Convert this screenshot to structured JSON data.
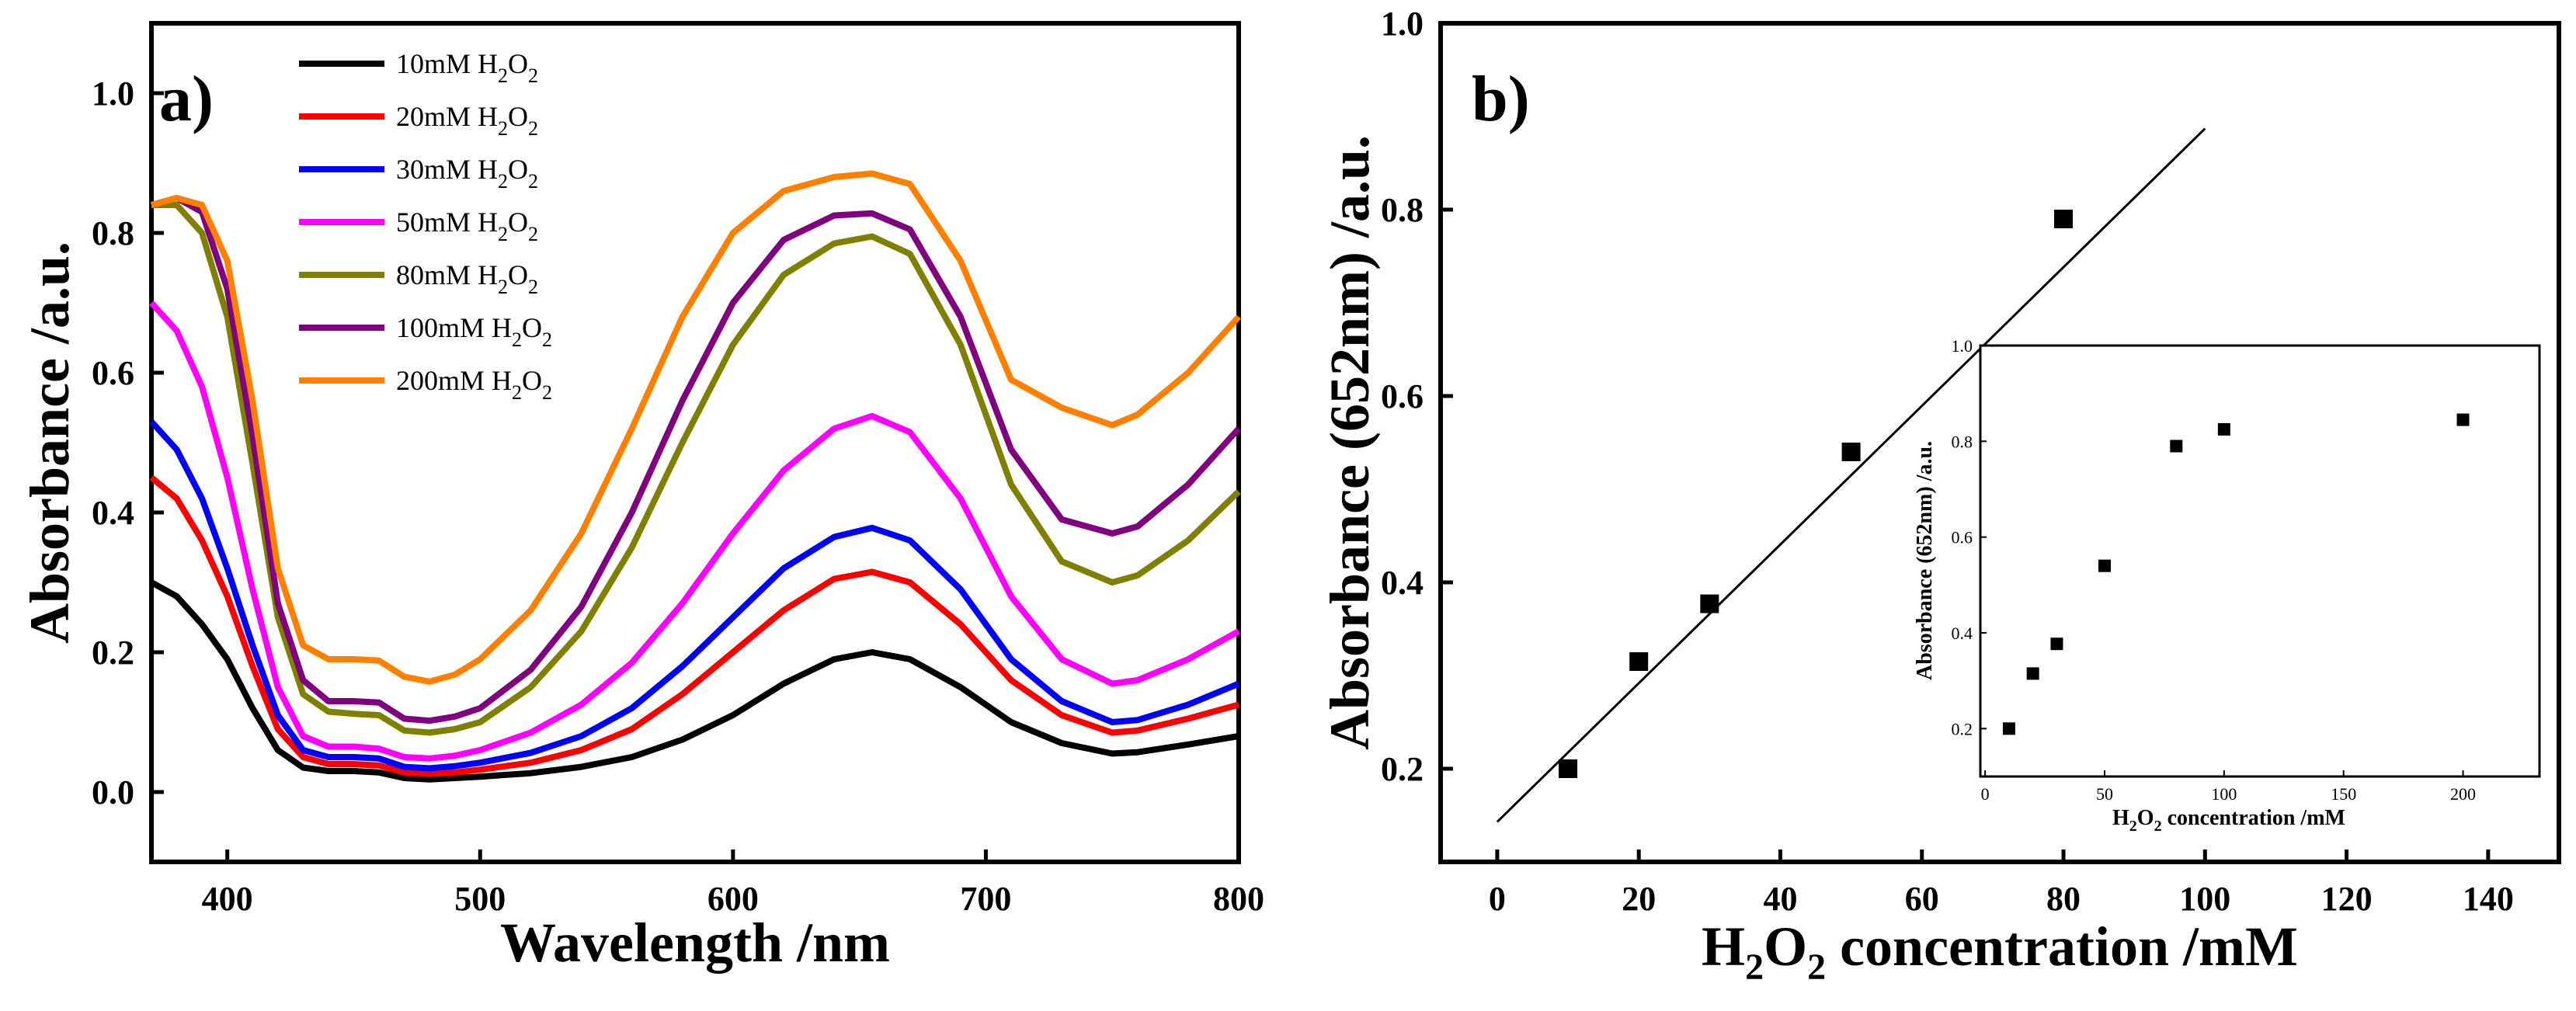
{
  "chart_data": [
    {
      "type": "line",
      "panel_label": "a)",
      "xlabel": "Wavelength /nm",
      "ylabel": "Absorbance /a.u.",
      "xlim": [
        370,
        800
      ],
      "ylim": [
        -0.1,
        1.1
      ],
      "xticks": [
        400,
        500,
        600,
        700,
        800
      ],
      "yticks": [
        0.0,
        0.2,
        0.4,
        0.6,
        0.8,
        1.0
      ],
      "xtick_labels": [
        "400",
        "500",
        "600",
        "700",
        "800"
      ],
      "ytick_labels": [
        "0.0",
        "0.2",
        "0.4",
        "0.6",
        "0.8",
        "1.0"
      ],
      "legend_position": "top-left",
      "series": [
        {
          "name": "10mM H2O2",
          "label_main": "10mM H",
          "color": "#000000",
          "x": [
            370,
            380,
            390,
            400,
            410,
            420,
            430,
            440,
            450,
            460,
            470,
            480,
            490,
            500,
            520,
            540,
            560,
            580,
            600,
            620,
            640,
            655,
            670,
            690,
            710,
            730,
            750,
            760,
            780,
            800
          ],
          "y": [
            0.3,
            0.28,
            0.24,
            0.19,
            0.12,
            0.06,
            0.035,
            0.03,
            0.03,
            0.028,
            0.02,
            0.018,
            0.02,
            0.022,
            0.027,
            0.036,
            0.05,
            0.075,
            0.11,
            0.155,
            0.19,
            0.2,
            0.19,
            0.15,
            0.1,
            0.07,
            0.055,
            0.057,
            0.068,
            0.08
          ]
        },
        {
          "name": "20mM H2O2",
          "label_main": "20mM H",
          "color": "#ff0000",
          "x": [
            370,
            380,
            390,
            400,
            410,
            420,
            430,
            440,
            450,
            460,
            470,
            480,
            490,
            500,
            520,
            540,
            560,
            580,
            600,
            620,
            640,
            655,
            670,
            690,
            710,
            730,
            750,
            760,
            780,
            800
          ],
          "y": [
            0.45,
            0.42,
            0.36,
            0.28,
            0.18,
            0.09,
            0.05,
            0.04,
            0.04,
            0.038,
            0.028,
            0.026,
            0.028,
            0.032,
            0.042,
            0.06,
            0.09,
            0.14,
            0.2,
            0.26,
            0.305,
            0.315,
            0.3,
            0.24,
            0.16,
            0.11,
            0.085,
            0.088,
            0.105,
            0.125
          ]
        },
        {
          "name": "30mM H2O2",
          "label_main": "30mM H",
          "color": "#0000ff",
          "x": [
            370,
            380,
            390,
            400,
            410,
            420,
            430,
            440,
            450,
            460,
            470,
            480,
            490,
            500,
            520,
            540,
            560,
            580,
            600,
            620,
            640,
            655,
            670,
            690,
            710,
            730,
            750,
            760,
            780,
            800
          ],
          "y": [
            0.53,
            0.49,
            0.42,
            0.32,
            0.21,
            0.11,
            0.06,
            0.05,
            0.05,
            0.048,
            0.036,
            0.034,
            0.037,
            0.042,
            0.056,
            0.08,
            0.12,
            0.18,
            0.25,
            0.32,
            0.365,
            0.378,
            0.36,
            0.29,
            0.19,
            0.13,
            0.1,
            0.103,
            0.125,
            0.155
          ]
        },
        {
          "name": "50mM H2O2",
          "label_main": "50mM H",
          "color": "#ff00ff",
          "x": [
            370,
            380,
            390,
            400,
            410,
            420,
            430,
            440,
            450,
            460,
            470,
            480,
            490,
            500,
            520,
            540,
            560,
            580,
            600,
            620,
            640,
            655,
            670,
            690,
            710,
            730,
            750,
            760,
            780,
            800
          ],
          "y": [
            0.7,
            0.66,
            0.58,
            0.45,
            0.29,
            0.15,
            0.08,
            0.065,
            0.065,
            0.062,
            0.05,
            0.048,
            0.052,
            0.06,
            0.085,
            0.125,
            0.185,
            0.27,
            0.37,
            0.46,
            0.52,
            0.538,
            0.515,
            0.42,
            0.28,
            0.19,
            0.155,
            0.16,
            0.19,
            0.23
          ]
        },
        {
          "name": "80mM H2O2",
          "label_main": "80mM H",
          "color": "#808000",
          "x": [
            370,
            380,
            390,
            400,
            410,
            420,
            430,
            440,
            450,
            460,
            470,
            480,
            490,
            500,
            520,
            540,
            560,
            580,
            600,
            620,
            640,
            655,
            670,
            690,
            710,
            730,
            750,
            760,
            780,
            800
          ],
          "y": [
            0.84,
            0.84,
            0.8,
            0.68,
            0.47,
            0.25,
            0.14,
            0.115,
            0.112,
            0.11,
            0.088,
            0.085,
            0.09,
            0.1,
            0.15,
            0.23,
            0.35,
            0.5,
            0.64,
            0.74,
            0.785,
            0.795,
            0.77,
            0.64,
            0.44,
            0.33,
            0.3,
            0.31,
            0.36,
            0.43
          ]
        },
        {
          "name": "100mM H2O2",
          "label_main": "100mM H",
          "color": "#800080",
          "x": [
            370,
            380,
            390,
            400,
            410,
            420,
            430,
            440,
            450,
            460,
            470,
            480,
            490,
            500,
            520,
            540,
            560,
            580,
            600,
            620,
            640,
            655,
            670,
            690,
            710,
            730,
            750,
            760,
            780,
            800
          ],
          "y": [
            0.84,
            0.85,
            0.83,
            0.72,
            0.51,
            0.27,
            0.16,
            0.13,
            0.13,
            0.128,
            0.105,
            0.102,
            0.108,
            0.12,
            0.175,
            0.265,
            0.4,
            0.56,
            0.7,
            0.79,
            0.825,
            0.828,
            0.805,
            0.68,
            0.49,
            0.39,
            0.37,
            0.38,
            0.44,
            0.52
          ]
        },
        {
          "name": "200mM H2O2",
          "label_main": "200mM H",
          "color": "#ff8000",
          "x": [
            370,
            380,
            390,
            400,
            410,
            420,
            430,
            440,
            450,
            460,
            470,
            480,
            490,
            500,
            520,
            540,
            560,
            580,
            600,
            620,
            640,
            655,
            670,
            690,
            710,
            730,
            750,
            760,
            780,
            800
          ],
          "y": [
            0.84,
            0.85,
            0.84,
            0.76,
            0.56,
            0.32,
            0.21,
            0.19,
            0.19,
            0.188,
            0.165,
            0.158,
            0.168,
            0.19,
            0.26,
            0.37,
            0.52,
            0.68,
            0.8,
            0.86,
            0.88,
            0.885,
            0.87,
            0.76,
            0.59,
            0.55,
            0.525,
            0.54,
            0.6,
            0.68
          ]
        }
      ]
    },
    {
      "type": "scatter",
      "panel_label": "b)",
      "xlabel_main": "H",
      "xlabel_sub1": "2",
      "xlabel_mid": "O",
      "xlabel_sub2": "2",
      "xlabel_tail": " concentration /mM",
      "ylabel": "Absorbance (652nm) /a.u.",
      "xlim": [
        -8,
        150
      ],
      "ylim": [
        0.1,
        1.0
      ],
      "xticks": [
        0,
        20,
        40,
        60,
        80,
        100,
        120,
        140
      ],
      "yticks": [
        0.2,
        0.4,
        0.6,
        0.8,
        1.0
      ],
      "xtick_labels": [
        "0",
        "20",
        "40",
        "60",
        "80",
        "100",
        "120",
        "140"
      ],
      "ytick_labels": [
        "0.2",
        "0.4",
        "0.6",
        "0.8",
        "1.0"
      ],
      "x": [
        10,
        20,
        30,
        50,
        80
      ],
      "y": [
        0.2,
        0.315,
        0.377,
        0.54,
        0.79
      ],
      "fit_line": {
        "x": [
          0,
          100
        ],
        "y": [
          0.143,
          0.887
        ]
      }
    },
    {
      "type": "scatter",
      "role": "inset",
      "xlabel_main": "H",
      "xlabel_sub1": "2",
      "xlabel_mid": "O",
      "xlabel_sub2": "2",
      "xlabel_tail": " concentration /mM",
      "ylabel": "Absorbance (652nm) /a.u.",
      "xlim": [
        -2,
        232
      ],
      "ylim": [
        0.1,
        1.0
      ],
      "xticks": [
        0,
        50,
        100,
        150,
        200
      ],
      "yticks": [
        0.2,
        0.4,
        0.6,
        0.8,
        1.0
      ],
      "xtick_labels": [
        "0",
        "50",
        "100",
        "150",
        "200"
      ],
      "ytick_labels": [
        "0.2",
        "0.4",
        "0.6",
        "0.8",
        "1.0"
      ],
      "x": [
        10,
        20,
        30,
        50,
        80,
        100,
        200
      ],
      "y": [
        0.2,
        0.315,
        0.377,
        0.54,
        0.79,
        0.825,
        0.845
      ]
    }
  ]
}
